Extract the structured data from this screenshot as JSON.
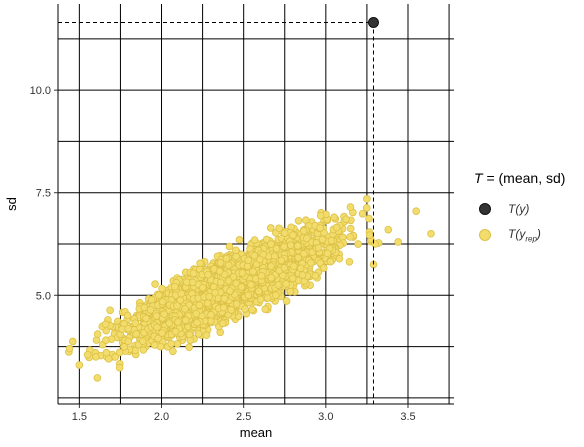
{
  "chart_data": {
    "type": "scatter",
    "xlabel": "mean",
    "ylabel": "sd",
    "xlim": [
      1.37,
      3.78
    ],
    "ylim": [
      2.35,
      12.1
    ],
    "x_ticks": [
      1.5,
      2.0,
      2.5,
      3.0,
      3.5
    ],
    "x_tick_labels": [
      "1.5",
      "2.0",
      "2.5",
      "3.0",
      "3.5"
    ],
    "y_ticks": [
      5.0,
      7.5,
      10.0
    ],
    "y_tick_labels": [
      "5.0",
      "7.5",
      "10.0"
    ],
    "grid": true,
    "legend_position": "right",
    "observed": {
      "x": 3.29,
      "y": 11.65
    },
    "replicated_sample": {
      "n": 4000,
      "mean_x": 2.4,
      "mean_y": 5.2,
      "sd_x": 0.28,
      "sd_y": 0.6,
      "correlation": 0.85,
      "extra_points": [
        [
          3.64,
          6.5
        ],
        [
          3.55,
          7.05
        ],
        [
          3.44,
          6.3
        ],
        [
          3.25,
          7.35
        ],
        [
          3.15,
          7.15
        ],
        [
          3.29,
          5.75
        ],
        [
          3.3,
          6.25
        ],
        [
          1.5,
          3.3
        ],
        [
          1.44,
          3.7
        ],
        [
          1.55,
          3.55
        ],
        [
          3.05,
          6.9
        ],
        [
          3.38,
          6.6
        ],
        [
          1.6,
          3.5
        ]
      ]
    },
    "colors": {
      "observed_fill": "#333333",
      "replicated_fill": "#f2dc6b",
      "replicated_stroke": "#dcc147",
      "grid": "#000000",
      "reference_line": "#000000"
    }
  },
  "legend": {
    "title_math": "T",
    "title_text": " = (mean, sd)",
    "items": [
      {
        "label_base": "T(y)",
        "label_sub": ""
      },
      {
        "label_base": "T(y",
        "label_sub": "rep",
        "label_close": ")"
      }
    ]
  }
}
